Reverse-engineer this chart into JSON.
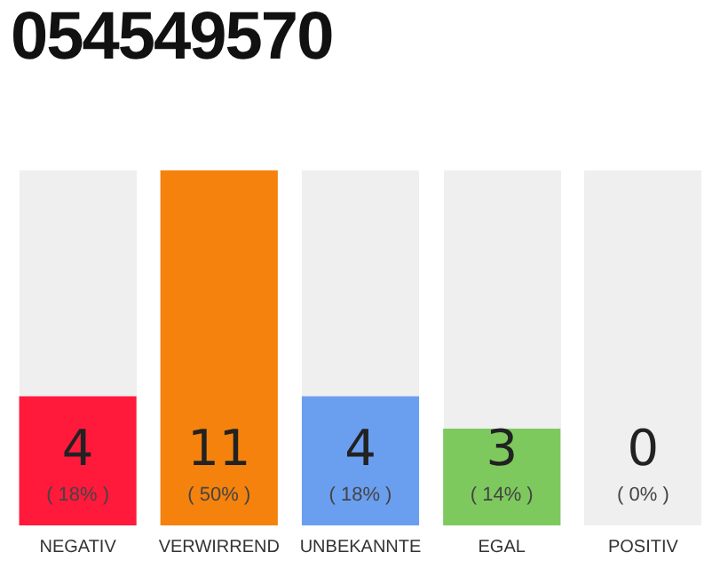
{
  "chart_data": {
    "type": "bar",
    "title": "054549570",
    "categories": [
      "NEGATIV",
      "VERWIRREND",
      "UNBEKANNTE",
      "EGAL",
      "POSITIV"
    ],
    "values": [
      4,
      11,
      4,
      3,
      0
    ],
    "colors": [
      "#ff1a3c",
      "#f5820d",
      "#6a9ff0",
      "#7dc95e",
      "#cccccc"
    ],
    "value_labels": [
      "4\n( 18% )",
      "11\n( 50% )",
      "4\n( 18% )",
      "3\n( 14% )",
      "0\n( 0% )"
    ],
    "grid": false,
    "legend": false
  }
}
